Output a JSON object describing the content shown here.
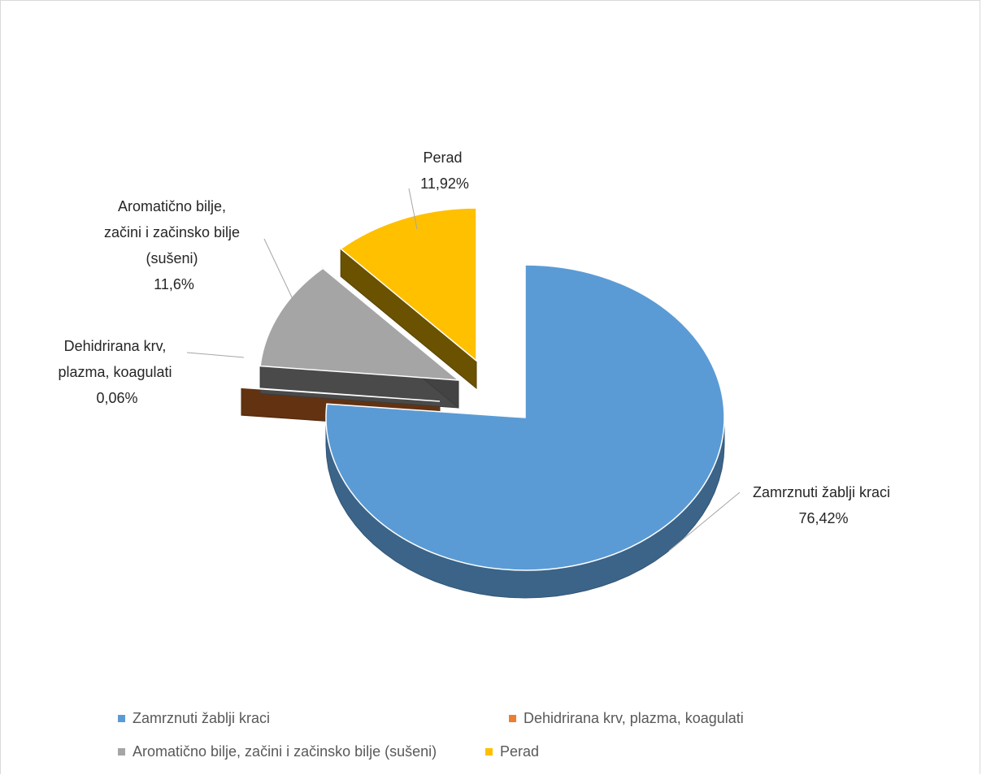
{
  "chart_data": {
    "type": "pie",
    "title": "",
    "slices": [
      {
        "name": "Zamrznuti žablji kraci",
        "value": 76.42,
        "label": "76,42%",
        "color": "#5B9BD5",
        "side_color": "#3B6488"
      },
      {
        "name": "Dehidrirana krv, plazma, koagulati",
        "value": 0.06,
        "label": "0,06%",
        "color": "#ED7D31",
        "side_color": "#6E3813"
      },
      {
        "name": "Aromatično bilje, začini i začinsko bilje (sušeni)",
        "value": 11.6,
        "label": "11,6%",
        "color": "#A5A5A5",
        "side_color": "#4A4A4A"
      },
      {
        "name": "Perad",
        "value": 11.92,
        "label": "11,92%",
        "color": "#FFC000",
        "side_color": "#6B5200"
      }
    ],
    "data_label_lines": {
      "zamrznuti": [
        "Zamrznuti žablji kraci",
        "76,42%"
      ],
      "dehidrirana": [
        "Dehidrirana krv,",
        "plazma, koagulati",
        "0,06%"
      ],
      "aromaticno": [
        "Aromatično bilje,",
        "začini i začinsko bilje",
        "(sušeni)",
        "11,6%"
      ],
      "perad": [
        "Perad",
        "11,92%"
      ]
    },
    "legend": {
      "placement": "bottom",
      "items": [
        {
          "label": "Zamrznuti žablji kraci",
          "color": "#5B9BD5"
        },
        {
          "label": "Dehidrirana krv, plazma, koagulati",
          "color": "#ED7D31"
        },
        {
          "label": "Aromatično bilje, začini i začinsko bilje (sušeni)",
          "color": "#A5A5A5"
        },
        {
          "label": "Perad",
          "color": "#FFC000"
        }
      ]
    },
    "style": "3d-exploded"
  }
}
